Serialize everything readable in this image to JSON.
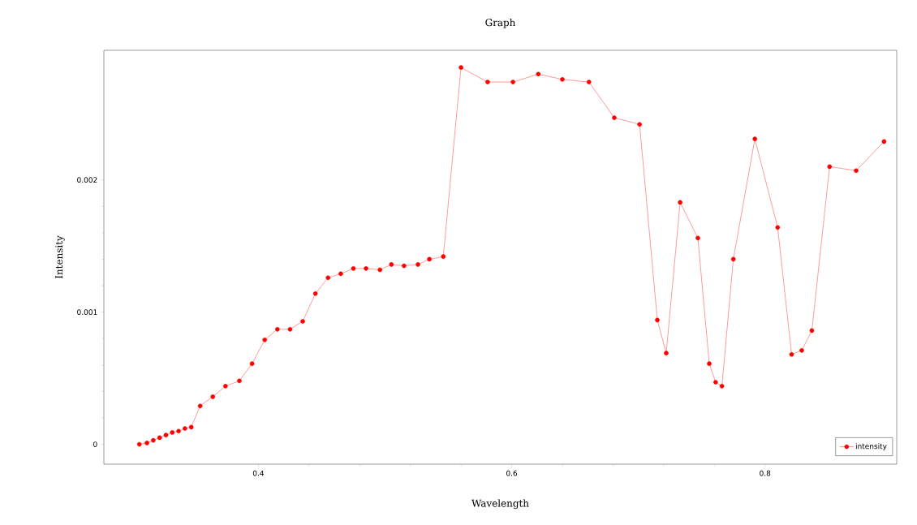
{
  "chart_data": {
    "type": "line",
    "title": "Graph",
    "xlabel": "Wavelength",
    "ylabel": "Intensity",
    "x": [
      0.306,
      0.312,
      0.317,
      0.322,
      0.327,
      0.332,
      0.337,
      0.342,
      0.347,
      0.354,
      0.364,
      0.374,
      0.385,
      0.395,
      0.405,
      0.415,
      0.425,
      0.435,
      0.445,
      0.455,
      0.465,
      0.475,
      0.485,
      0.496,
      0.505,
      0.515,
      0.526,
      0.535,
      0.546,
      0.56,
      0.581,
      0.601,
      0.621,
      0.64,
      0.661,
      0.681,
      0.701,
      0.715,
      0.722,
      0.733,
      0.747,
      0.756,
      0.761,
      0.766,
      0.775,
      0.792,
      0.81,
      0.821,
      0.829,
      0.837,
      0.851,
      0.872,
      0.894
    ],
    "series": [
      {
        "name": "intensity",
        "color": "#ff0000",
        "values": [
          0,
          1e-05,
          3e-05,
          5e-05,
          7e-05,
          9e-05,
          0.0001,
          0.00012,
          0.00013,
          0.00029,
          0.00036,
          0.00044,
          0.00048,
          0.00061,
          0.00079,
          0.00087,
          0.00087,
          0.00093,
          0.00114,
          0.00126,
          0.00129,
          0.00133,
          0.00133,
          0.00132,
          0.00136,
          0.00135,
          0.00136,
          0.0014,
          0.00142,
          0.00285,
          0.00274,
          0.00274,
          0.0028,
          0.00276,
          0.00274,
          0.00247,
          0.00242,
          0.00094,
          0.00069,
          0.00183,
          0.00156,
          0.00061,
          0.00047,
          0.00044,
          0.0014,
          0.00231,
          0.00164,
          0.00068,
          0.00071,
          0.00086,
          0.0021,
          0.00207,
          0.00229
        ]
      }
    ],
    "xlim": [
      0.278,
      0.904
    ],
    "ylim": [
      -0.00015,
      0.00298
    ],
    "xticks": [
      0.4,
      0.6,
      0.8
    ],
    "yticks": [
      0,
      0.001,
      0.002
    ],
    "legend": "bottom right",
    "marker": "circle",
    "line_style": "solid",
    "grid": false
  }
}
